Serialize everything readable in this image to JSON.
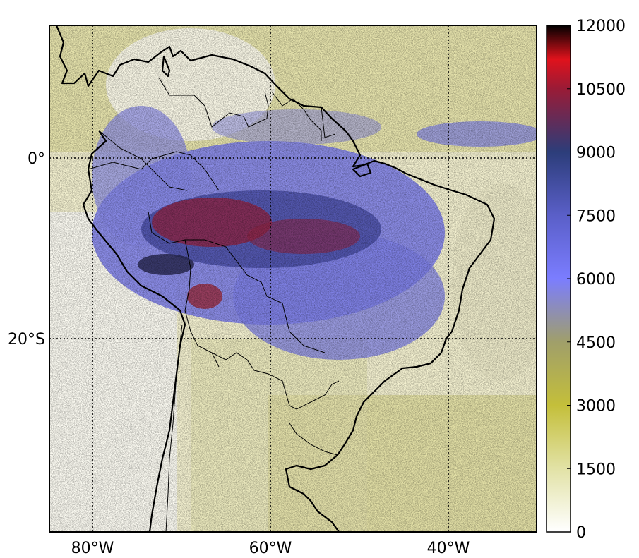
{
  "map": {
    "grid": {
      "longitudes": [
        {
          "value": -80,
          "label": "80°W"
        },
        {
          "value": -60,
          "label": "60°W"
        },
        {
          "value": -40,
          "label": "40°W"
        }
      ],
      "latitudes": [
        {
          "value": 0,
          "label": "0°"
        },
        {
          "value": -20,
          "label": "20°S"
        }
      ],
      "style": "dotted"
    },
    "extent": {
      "lon_min": -85,
      "lon_max": -30,
      "lat_min": -40,
      "lat_max": 15
    },
    "overlays": [
      "coastlines",
      "country-borders"
    ]
  },
  "colorbar": {
    "ticks": [
      "0",
      "1500",
      "3000",
      "4500",
      "6000",
      "7500",
      "9000",
      "10500",
      "12000"
    ],
    "min": 0,
    "max": 12000,
    "stops": [
      {
        "value": 0,
        "color": "#ffffff"
      },
      {
        "value": 1500,
        "color": "#e2e2a6"
      },
      {
        "value": 3000,
        "color": "#c4bf3a"
      },
      {
        "value": 4500,
        "color": "#a09f6a"
      },
      {
        "value": 6000,
        "color": "#7b7dff"
      },
      {
        "value": 7500,
        "color": "#5a5fc8"
      },
      {
        "value": 9000,
        "color": "#2c3d7a"
      },
      {
        "value": 10500,
        "color": "#9a1b36"
      },
      {
        "value": 11200,
        "color": "#e0121c"
      },
      {
        "value": 12000,
        "color": "#000000"
      }
    ]
  }
}
